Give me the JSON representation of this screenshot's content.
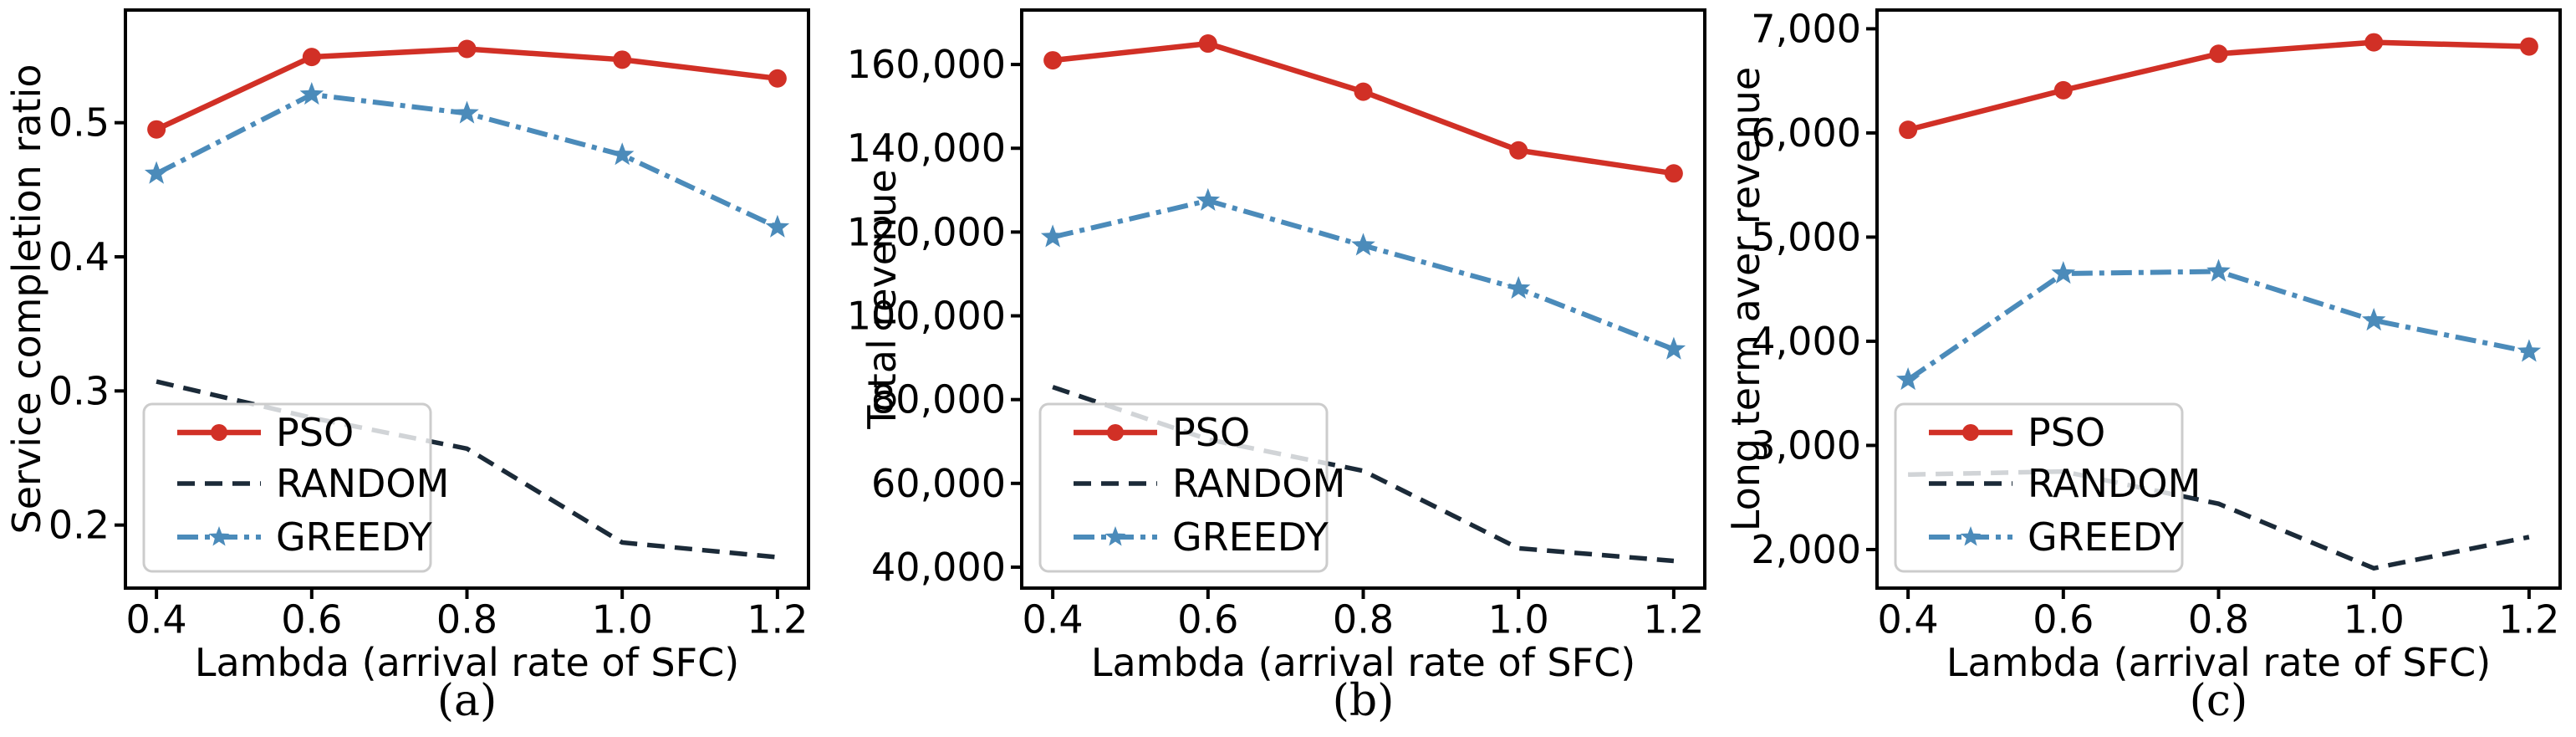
{
  "figure": {
    "background": "#ffffff",
    "xlabel": "Lambda (arrival rate of SFC)",
    "x_tick_labels": [
      "0.4",
      "0.6",
      "0.8",
      "1.0",
      "1.2"
    ],
    "x_values": [
      0.4,
      0.6,
      0.8,
      1.0,
      1.2
    ],
    "xlim": [
      0.36,
      1.24
    ],
    "legend": {
      "position": "lower left",
      "labels": [
        "PSO",
        "RANDOM",
        "GREEDY"
      ],
      "border_color": "#cccccc",
      "background": "rgba(255,255,255,0.8)"
    },
    "series_styles": {
      "PSO": {
        "color": "#d13026",
        "dash": "",
        "marker": "circle",
        "width": 6.5
      },
      "RANDOM": {
        "color": "#1b2a38",
        "dash": "21 12",
        "marker": "none",
        "width": 5.5
      },
      "GREEDY": {
        "color": "#4b8bba",
        "dash": "25 8 6 8",
        "marker": "star",
        "width": 6
      }
    },
    "spine_color": "#000000"
  },
  "chart_data": [
    {
      "type": "line",
      "caption": "(a)",
      "title": "",
      "xlabel": "Lambda (arrival rate of SFC)",
      "ylabel": "Service completion ratio",
      "x": [
        0.4,
        0.6,
        0.8,
        1.0,
        1.2
      ],
      "xlim": [
        0.36,
        1.24
      ],
      "ylim": [
        0.153,
        0.584
      ],
      "yticks": [
        {
          "value": 0.2,
          "label": "0.2"
        },
        {
          "value": 0.3,
          "label": "0.3"
        },
        {
          "value": 0.4,
          "label": "0.4"
        },
        {
          "value": 0.5,
          "label": "0.5"
        }
      ],
      "grid": false,
      "legend_position": "lower left",
      "series": [
        {
          "name": "PSO",
          "values": [
            0.495,
            0.549,
            0.555,
            0.547,
            0.533
          ]
        },
        {
          "name": "RANDOM",
          "values": [
            0.307,
            0.28,
            0.257,
            0.187,
            0.176
          ]
        },
        {
          "name": "GREEDY",
          "values": [
            0.462,
            0.521,
            0.507,
            0.476,
            0.422
          ]
        }
      ]
    },
    {
      "type": "line",
      "caption": "(b)",
      "title": "",
      "xlabel": "Lambda (arrival rate of SFC)",
      "ylabel": "Total revenue",
      "x": [
        0.4,
        0.6,
        0.8,
        1.0,
        1.2
      ],
      "xlim": [
        0.36,
        1.24
      ],
      "ylim": [
        35000,
        173000
      ],
      "yticks": [
        {
          "value": 40000,
          "label": "40,000"
        },
        {
          "value": 60000,
          "label": "60,000"
        },
        {
          "value": 80000,
          "label": "80,000"
        },
        {
          "value": 100000,
          "label": "100,000"
        },
        {
          "value": 120000,
          "label": "120,000"
        },
        {
          "value": 140000,
          "label": "140,000"
        },
        {
          "value": 160000,
          "label": "160,000"
        }
      ],
      "grid": false,
      "legend_position": "lower left",
      "series": [
        {
          "name": "PSO",
          "values": [
            161000,
            165000,
            153500,
            139500,
            134000
          ]
        },
        {
          "name": "RANDOM",
          "values": [
            83000,
            70500,
            63000,
            44500,
            41500
          ]
        },
        {
          "name": "GREEDY",
          "values": [
            118800,
            127500,
            116800,
            106500,
            92000
          ]
        }
      ]
    },
    {
      "type": "line",
      "caption": "(c)",
      "title": "",
      "xlabel": "Lambda (arrival rate of SFC)",
      "ylabel": "Long term aver revenue",
      "x": [
        0.4,
        0.6,
        0.8,
        1.0,
        1.2
      ],
      "xlim": [
        0.36,
        1.24
      ],
      "ylim": [
        1630,
        7180
      ],
      "yticks": [
        {
          "value": 2000,
          "label": "2,000"
        },
        {
          "value": 3000,
          "label": "3,000"
        },
        {
          "value": 4000,
          "label": "4,000"
        },
        {
          "value": 5000,
          "label": "5,000"
        },
        {
          "value": 6000,
          "label": "6,000"
        },
        {
          "value": 7000,
          "label": "7,000"
        }
      ],
      "grid": false,
      "legend_position": "lower left",
      "series": [
        {
          "name": "PSO",
          "values": [
            6030,
            6410,
            6760,
            6870,
            6830
          ]
        },
        {
          "name": "RANDOM",
          "values": [
            2720,
            2750,
            2440,
            1820,
            2120
          ]
        },
        {
          "name": "GREEDY",
          "values": [
            3630,
            4650,
            4670,
            4200,
            3900
          ]
        }
      ]
    }
  ]
}
